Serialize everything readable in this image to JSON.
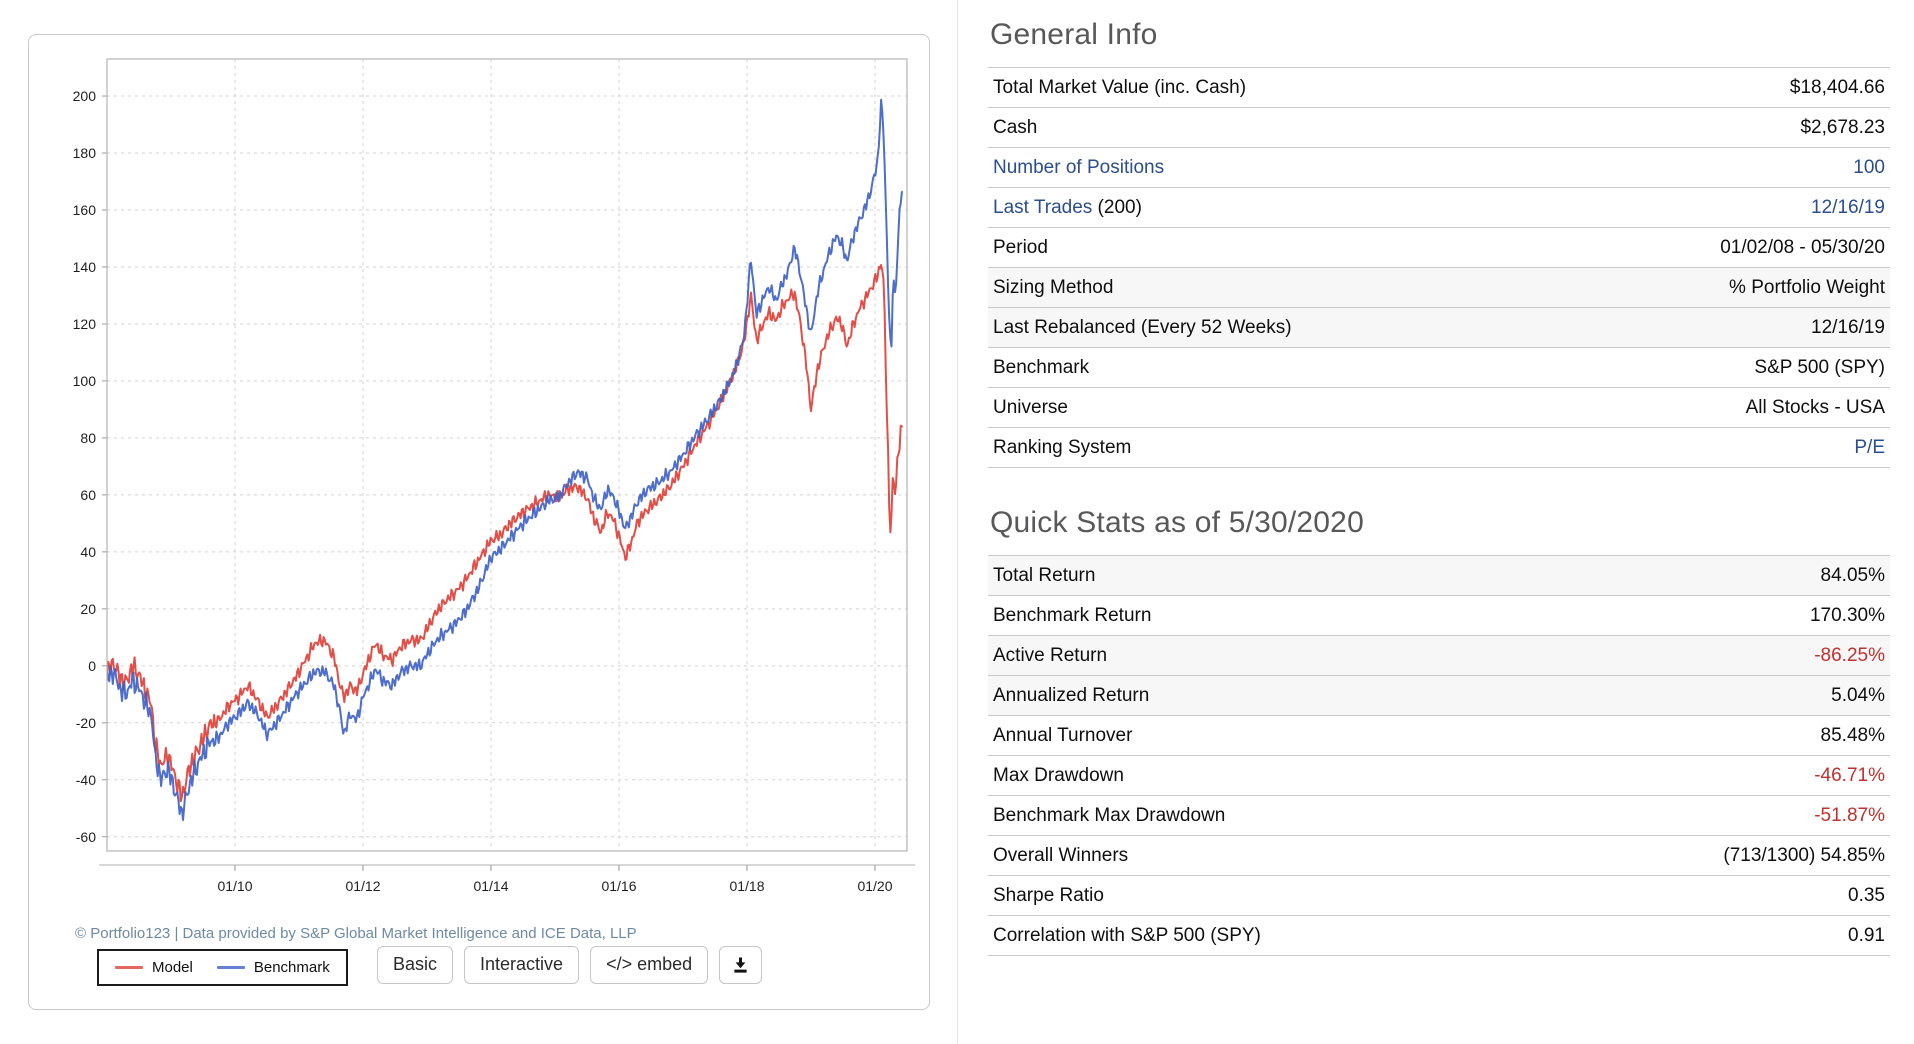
{
  "panel": {
    "copyright": "© Portfolio123 | Data provided by S&P Global Market Intelligence and ICE Data, LLP",
    "legend": [
      {
        "label": "Model",
        "color": "#e04038"
      },
      {
        "label": "Benchmark",
        "color": "#3f62c8"
      }
    ],
    "buttons": {
      "basic": "Basic",
      "interactive": "Interactive",
      "embed": "</> embed",
      "download_icon": "download-icon"
    }
  },
  "chart_data": {
    "type": "line",
    "title": "",
    "xlabel": "",
    "ylabel": "",
    "grid": true,
    "legend_position": "bottom-left",
    "xlim": [
      2008.0,
      2020.5
    ],
    "ylim": [
      -65,
      213
    ],
    "x_ticks": [
      {
        "t": 2010,
        "label": "01/10"
      },
      {
        "t": 2012,
        "label": "01/12"
      },
      {
        "t": 2014,
        "label": "01/14"
      },
      {
        "t": 2016,
        "label": "01/16"
      },
      {
        "t": 2018,
        "label": "01/18"
      },
      {
        "t": 2020,
        "label": "01/20"
      }
    ],
    "y_ticks": [
      -60,
      -40,
      -20,
      0,
      20,
      40,
      60,
      80,
      100,
      120,
      140,
      160,
      180,
      200
    ],
    "series": [
      {
        "name": "Model",
        "color": "#e04038",
        "points": [
          [
            2008.0,
            -2
          ],
          [
            2008.1,
            1
          ],
          [
            2008.2,
            -4
          ],
          [
            2008.3,
            -6
          ],
          [
            2008.4,
            0
          ],
          [
            2008.5,
            -3
          ],
          [
            2008.6,
            -9
          ],
          [
            2008.7,
            -14
          ],
          [
            2008.75,
            -28
          ],
          [
            2008.85,
            -35
          ],
          [
            2008.95,
            -31
          ],
          [
            2009.05,
            -38
          ],
          [
            2009.17,
            -46
          ],
          [
            2009.3,
            -35
          ],
          [
            2009.45,
            -28
          ],
          [
            2009.6,
            -21
          ],
          [
            2009.75,
            -19
          ],
          [
            2009.9,
            -14
          ],
          [
            2010.05,
            -11
          ],
          [
            2010.2,
            -7
          ],
          [
            2010.35,
            -12
          ],
          [
            2010.5,
            -18
          ],
          [
            2010.65,
            -14
          ],
          [
            2010.8,
            -9
          ],
          [
            2010.95,
            -4
          ],
          [
            2011.1,
            2
          ],
          [
            2011.25,
            8
          ],
          [
            2011.4,
            9
          ],
          [
            2011.55,
            3
          ],
          [
            2011.63,
            -6
          ],
          [
            2011.7,
            -11
          ],
          [
            2011.8,
            -7
          ],
          [
            2011.9,
            -9
          ],
          [
            2012.0,
            -3
          ],
          [
            2012.1,
            3
          ],
          [
            2012.2,
            8
          ],
          [
            2012.3,
            4
          ],
          [
            2012.45,
            2
          ],
          [
            2012.6,
            7
          ],
          [
            2012.75,
            9
          ],
          [
            2012.9,
            9
          ],
          [
            2013.0,
            13
          ],
          [
            2013.15,
            19
          ],
          [
            2013.3,
            23
          ],
          [
            2013.45,
            26
          ],
          [
            2013.6,
            30
          ],
          [
            2013.8,
            37
          ],
          [
            2014.0,
            44
          ],
          [
            2014.15,
            46
          ],
          [
            2014.3,
            50
          ],
          [
            2014.5,
            54
          ],
          [
            2014.7,
            57
          ],
          [
            2014.9,
            60
          ],
          [
            2015.05,
            59
          ],
          [
            2015.2,
            62
          ],
          [
            2015.35,
            63
          ],
          [
            2015.5,
            59
          ],
          [
            2015.62,
            51
          ],
          [
            2015.72,
            47
          ],
          [
            2015.82,
            54
          ],
          [
            2015.92,
            51
          ],
          [
            2016.02,
            44
          ],
          [
            2016.1,
            38
          ],
          [
            2016.2,
            44
          ],
          [
            2016.3,
            51
          ],
          [
            2016.45,
            55
          ],
          [
            2016.6,
            58
          ],
          [
            2016.8,
            63
          ],
          [
            2017.0,
            70
          ],
          [
            2017.2,
            78
          ],
          [
            2017.4,
            85
          ],
          [
            2017.6,
            93
          ],
          [
            2017.8,
            103
          ],
          [
            2017.95,
            113
          ],
          [
            2018.06,
            130
          ],
          [
            2018.15,
            114
          ],
          [
            2018.25,
            120
          ],
          [
            2018.35,
            124
          ],
          [
            2018.45,
            121
          ],
          [
            2018.55,
            126
          ],
          [
            2018.65,
            129
          ],
          [
            2018.74,
            131
          ],
          [
            2018.83,
            121
          ],
          [
            2018.92,
            107
          ],
          [
            2019.0,
            90
          ],
          [
            2019.1,
            104
          ],
          [
            2019.2,
            112
          ],
          [
            2019.3,
            118
          ],
          [
            2019.4,
            122
          ],
          [
            2019.48,
            120
          ],
          [
            2019.56,
            112
          ],
          [
            2019.65,
            119
          ],
          [
            2019.75,
            125
          ],
          [
            2019.85,
            129
          ],
          [
            2019.95,
            133
          ],
          [
            2020.04,
            137
          ],
          [
            2020.1,
            142
          ],
          [
            2020.14,
            132
          ],
          [
            2020.18,
            95
          ],
          [
            2020.22,
            58
          ],
          [
            2020.25,
            44
          ],
          [
            2020.28,
            68
          ],
          [
            2020.32,
            61
          ],
          [
            2020.36,
            74
          ],
          [
            2020.42,
            84
          ]
        ]
      },
      {
        "name": "Benchmark",
        "color": "#3f62c8",
        "points": [
          [
            2008.0,
            -4
          ],
          [
            2008.1,
            -2
          ],
          [
            2008.2,
            -8
          ],
          [
            2008.3,
            -10
          ],
          [
            2008.4,
            -5
          ],
          [
            2008.5,
            -8
          ],
          [
            2008.6,
            -13
          ],
          [
            2008.7,
            -18
          ],
          [
            2008.75,
            -32
          ],
          [
            2008.85,
            -40
          ],
          [
            2008.95,
            -36
          ],
          [
            2009.05,
            -43
          ],
          [
            2009.17,
            -52
          ],
          [
            2009.3,
            -41
          ],
          [
            2009.45,
            -33
          ],
          [
            2009.6,
            -27
          ],
          [
            2009.75,
            -25
          ],
          [
            2009.9,
            -20
          ],
          [
            2010.05,
            -17
          ],
          [
            2010.2,
            -13
          ],
          [
            2010.35,
            -17
          ],
          [
            2010.5,
            -24
          ],
          [
            2010.65,
            -20
          ],
          [
            2010.8,
            -15
          ],
          [
            2010.95,
            -10
          ],
          [
            2011.1,
            -6
          ],
          [
            2011.25,
            -2
          ],
          [
            2011.4,
            -2
          ],
          [
            2011.55,
            -7
          ],
          [
            2011.63,
            -15
          ],
          [
            2011.7,
            -24
          ],
          [
            2011.8,
            -17
          ],
          [
            2011.9,
            -19
          ],
          [
            2012.0,
            -11
          ],
          [
            2012.1,
            -6
          ],
          [
            2012.2,
            -1
          ],
          [
            2012.3,
            -5
          ],
          [
            2012.45,
            -7
          ],
          [
            2012.6,
            -2
          ],
          [
            2012.75,
            0
          ],
          [
            2012.9,
            0
          ],
          [
            2013.0,
            4
          ],
          [
            2013.15,
            9
          ],
          [
            2013.3,
            12
          ],
          [
            2013.45,
            15
          ],
          [
            2013.6,
            19
          ],
          [
            2013.8,
            27
          ],
          [
            2014.0,
            38
          ],
          [
            2014.15,
            41
          ],
          [
            2014.3,
            45
          ],
          [
            2014.5,
            50
          ],
          [
            2014.7,
            54
          ],
          [
            2014.9,
            58
          ],
          [
            2015.05,
            59
          ],
          [
            2015.2,
            64
          ],
          [
            2015.35,
            68
          ],
          [
            2015.5,
            66
          ],
          [
            2015.62,
            58
          ],
          [
            2015.72,
            55
          ],
          [
            2015.82,
            62
          ],
          [
            2015.92,
            59
          ],
          [
            2016.02,
            53
          ],
          [
            2016.1,
            48
          ],
          [
            2016.2,
            53
          ],
          [
            2016.3,
            58
          ],
          [
            2016.45,
            62
          ],
          [
            2016.6,
            64
          ],
          [
            2016.8,
            68
          ],
          [
            2017.0,
            74
          ],
          [
            2017.2,
            81
          ],
          [
            2017.4,
            87
          ],
          [
            2017.6,
            94
          ],
          [
            2017.8,
            103
          ],
          [
            2017.95,
            115
          ],
          [
            2018.06,
            143
          ],
          [
            2018.15,
            123
          ],
          [
            2018.25,
            129
          ],
          [
            2018.35,
            133
          ],
          [
            2018.45,
            128
          ],
          [
            2018.55,
            134
          ],
          [
            2018.65,
            139
          ],
          [
            2018.74,
            147
          ],
          [
            2018.83,
            138
          ],
          [
            2018.92,
            126
          ],
          [
            2019.0,
            116
          ],
          [
            2019.1,
            131
          ],
          [
            2019.2,
            139
          ],
          [
            2019.3,
            146
          ],
          [
            2019.4,
            151
          ],
          [
            2019.48,
            148
          ],
          [
            2019.56,
            142
          ],
          [
            2019.65,
            150
          ],
          [
            2019.75,
            156
          ],
          [
            2019.85,
            161
          ],
          [
            2019.95,
            168
          ],
          [
            2020.04,
            177
          ],
          [
            2020.1,
            198
          ],
          [
            2020.14,
            186
          ],
          [
            2020.18,
            152
          ],
          [
            2020.22,
            124
          ],
          [
            2020.25,
            104
          ],
          [
            2020.28,
            138
          ],
          [
            2020.32,
            128
          ],
          [
            2020.36,
            150
          ],
          [
            2020.42,
            170
          ]
        ]
      }
    ]
  },
  "general_info": {
    "title": "General Info",
    "rows": [
      {
        "label": "Total Market Value (inc. Cash)",
        "value": "$18,404.66"
      },
      {
        "label": "Cash",
        "value": "$2,678.23"
      },
      {
        "label": "Number of Positions",
        "label_is_link": true,
        "value": "100",
        "value_style": "link"
      },
      {
        "label": "Last Trades",
        "label_is_link": true,
        "label_rest": " (200)",
        "value": "12/16/19",
        "value_style": "link"
      },
      {
        "label": "Period",
        "value": "01/02/08 - 05/30/20"
      },
      {
        "label": "Sizing Method",
        "value": "% Portfolio Weight"
      },
      {
        "label": "Last Rebalanced (Every 52 Weeks)",
        "value": "12/16/19"
      },
      {
        "label": "Benchmark",
        "value": "S&P 500 (SPY)"
      },
      {
        "label": "Universe",
        "value": "All Stocks - USA"
      },
      {
        "label": "Ranking System",
        "value": "P/E",
        "value_style": "link"
      }
    ]
  },
  "quick_stats": {
    "title": "Quick Stats as of 5/30/2020",
    "rows": [
      {
        "label": "Total Return",
        "value": "84.05%"
      },
      {
        "label": "Benchmark Return",
        "value": "170.30%"
      },
      {
        "label": "Active Return",
        "value": "-86.25%",
        "value_style": "neg"
      },
      {
        "label": "Annualized Return",
        "value": "5.04%"
      },
      {
        "label": "Annual Turnover",
        "value": "85.48%"
      },
      {
        "label": "Max Drawdown",
        "value": "-46.71%",
        "value_style": "neg"
      },
      {
        "label": "Benchmark Max Drawdown",
        "value": "-51.87%",
        "value_style": "neg"
      },
      {
        "label": "Overall Winners",
        "value": "(713/1300) 54.85%"
      },
      {
        "label": "Sharpe Ratio",
        "value": "0.35"
      },
      {
        "label": "Correlation with S&P 500 (SPY)",
        "value": "0.91"
      }
    ]
  }
}
